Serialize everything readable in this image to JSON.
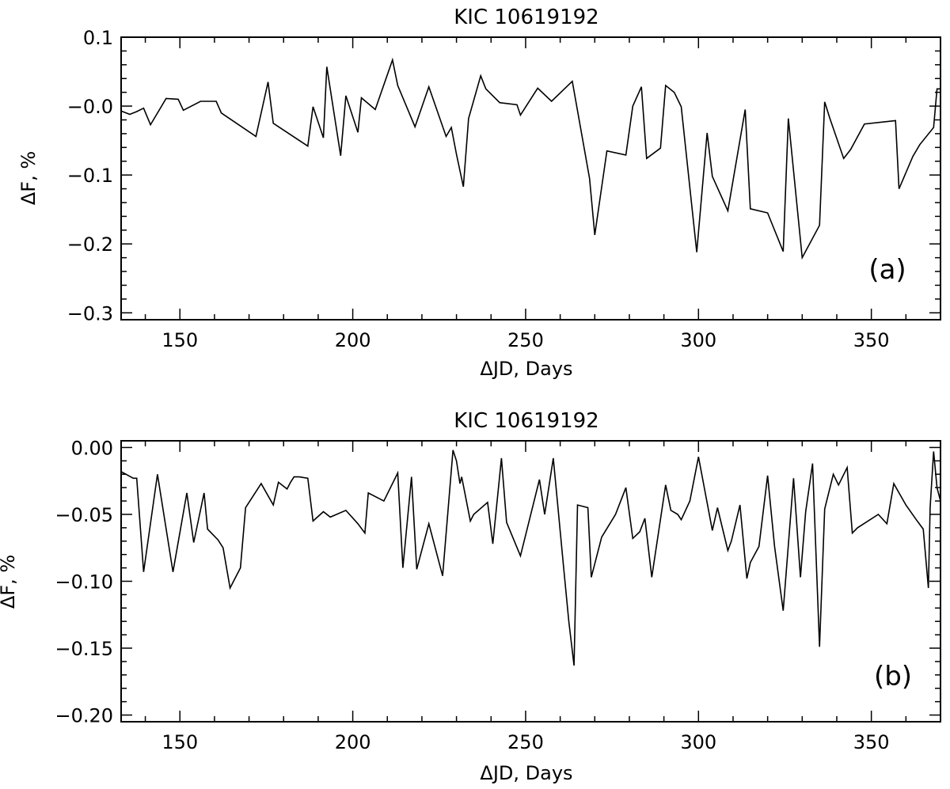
{
  "chart_data": [
    {
      "id": "a",
      "type": "line",
      "title": "KIC 10619192",
      "xlabel": "ΔJD, Days",
      "ylabel": "ΔF, %",
      "panel_label": "(a)",
      "xlim": [
        133,
        370
      ],
      "ylim": [
        -0.31,
        0.1
      ],
      "xticks": [
        150,
        200,
        250,
        300,
        350
      ],
      "yticks": [
        0.1,
        0.0,
        -0.1,
        -0.2,
        -0.3
      ],
      "ytick_labels": [
        "0.1",
        "-0.0",
        "-0.1",
        "-0.2",
        "-0.3"
      ],
      "grid": false,
      "series": [
        {
          "x": [
            133,
            135.5,
            137.5,
            139.5,
            141.5,
            146,
            149.5,
            151,
            156,
            160.5,
            162,
            172,
            175.5,
            177,
            187,
            188.5,
            191.5,
            192.5,
            196.5,
            198,
            201.5,
            202.5,
            206.5,
            211.5,
            213,
            218,
            222,
            227,
            228.5,
            230,
            232,
            233.5,
            237,
            238.5,
            242.5,
            247.5,
            248.5,
            253.5,
            257.5,
            263.5,
            268.5,
            270,
            273.5,
            279,
            281,
            283.5,
            285,
            289,
            290.5,
            293,
            295,
            299.5,
            302.5,
            304,
            308.5,
            313.5,
            315,
            320,
            324.5,
            326,
            330,
            335,
            336.5,
            338,
            342,
            344,
            348,
            357,
            358,
            362,
            364,
            368,
            369,
            370
          ],
          "y": [
            -0.007,
            -0.012,
            -0.008,
            -0.003,
            -0.027,
            0.011,
            0.01,
            -0.006,
            0.007,
            0.007,
            -0.01,
            -0.044,
            0.035,
            -0.025,
            -0.058,
            -0.001,
            -0.046,
            0.057,
            -0.072,
            0.015,
            -0.038,
            0.012,
            -0.005,
            0.067,
            0.03,
            -0.03,
            0.028,
            -0.044,
            -0.031,
            -0.07,
            -0.117,
            -0.018,
            0.044,
            0.025,
            0.005,
            0.002,
            -0.013,
            0.026,
            0.007,
            0.036,
            -0.105,
            -0.187,
            -0.065,
            -0.071,
            0.0,
            0.028,
            -0.076,
            -0.061,
            0.03,
            0.02,
            -0.001,
            -0.212,
            -0.039,
            -0.102,
            -0.152,
            -0.005,
            -0.149,
            -0.155,
            -0.211,
            -0.018,
            -0.22,
            -0.173,
            0.006,
            -0.018,
            -0.076,
            -0.063,
            -0.026,
            -0.021,
            -0.12,
            -0.073,
            -0.056,
            -0.031,
            0.025,
            0.025
          ]
        }
      ]
    },
    {
      "id": "b",
      "type": "line",
      "title": "KIC 10619192",
      "xlabel": "ΔJD, Days",
      "ylabel": "ΔF, %",
      "panel_label": "(b)",
      "xlim": [
        133,
        370
      ],
      "ylim": [
        -0.205,
        0.005
      ],
      "xticks": [
        150,
        200,
        250,
        300,
        350
      ],
      "yticks": [
        0.0,
        -0.05,
        -0.1,
        -0.15,
        -0.2
      ],
      "ytick_labels": [
        "0.00",
        "-0.05",
        "-0.10",
        "-0.15",
        "-0.20"
      ],
      "grid": false,
      "series": [
        {
          "x": [
            133,
            136.5,
            137.5,
            139.5,
            143.5,
            148,
            152,
            154,
            157,
            158,
            161,
            162.5,
            164.5,
            167.5,
            169,
            173.5,
            177,
            178.5,
            181,
            182,
            183,
            184.5,
            187,
            188.5,
            191.5,
            193.5,
            198,
            201.5,
            203.5,
            204.5,
            209,
            213,
            214.5,
            217,
            218.5,
            222,
            226,
            229,
            230,
            231,
            231.5,
            234,
            235,
            239,
            240.5,
            243,
            244.5,
            248.5,
            254,
            255.5,
            258,
            261,
            262.5,
            264,
            265,
            268,
            269,
            272,
            276,
            279,
            281,
            283,
            284.5,
            286.5,
            290.5,
            292,
            294,
            295,
            297.5,
            300,
            304,
            305.5,
            308.5,
            309.5,
            312,
            314,
            315,
            317.5,
            320,
            322,
            324.5,
            327.5,
            329.5,
            331,
            333,
            335,
            336.5,
            339,
            340.5,
            343,
            344.5,
            346,
            352,
            354.5,
            356.5,
            360,
            363,
            365,
            366.5,
            367,
            368,
            369,
            370
          ],
          "y": [
            -0.018,
            -0.023,
            -0.023,
            -0.093,
            -0.02,
            -0.093,
            -0.034,
            -0.071,
            -0.034,
            -0.061,
            -0.069,
            -0.075,
            -0.105,
            -0.09,
            -0.045,
            -0.027,
            -0.043,
            -0.026,
            -0.031,
            -0.026,
            -0.022,
            -0.022,
            -0.023,
            -0.055,
            -0.048,
            -0.052,
            -0.047,
            -0.057,
            -0.064,
            -0.034,
            -0.04,
            -0.019,
            -0.09,
            -0.022,
            -0.091,
            -0.057,
            -0.096,
            -0.002,
            -0.01,
            -0.027,
            -0.022,
            -0.055,
            -0.05,
            -0.041,
            -0.072,
            -0.008,
            -0.056,
            -0.081,
            -0.024,
            -0.05,
            -0.008,
            -0.09,
            -0.13,
            -0.163,
            -0.043,
            -0.045,
            -0.097,
            -0.067,
            -0.05,
            -0.03,
            -0.068,
            -0.063,
            -0.053,
            -0.097,
            -0.028,
            -0.047,
            -0.05,
            -0.054,
            -0.04,
            -0.007,
            -0.062,
            -0.045,
            -0.077,
            -0.07,
            -0.043,
            -0.098,
            -0.086,
            -0.074,
            -0.021,
            -0.074,
            -0.122,
            -0.023,
            -0.097,
            -0.048,
            -0.012,
            -0.149,
            -0.046,
            -0.02,
            -0.028,
            -0.015,
            -0.064,
            -0.06,
            -0.05,
            -0.057,
            -0.027,
            -0.043,
            -0.054,
            -0.061,
            -0.105,
            -0.045,
            -0.003,
            -0.03,
            -0.04
          ]
        }
      ]
    }
  ]
}
